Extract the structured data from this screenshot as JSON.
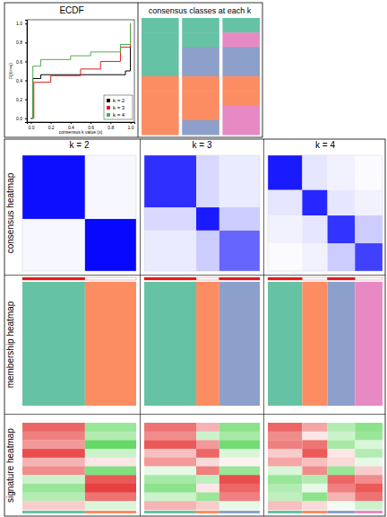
{
  "chart_data": [
    {
      "type": "line",
      "title": "ECDF",
      "x_label": "consensus k value (x)",
      "y_label": "F(X<=x)",
      "xlim": [
        -0.04,
        1.04
      ],
      "ylim": [
        -0.04,
        1.04
      ],
      "xticks": [
        {
          "value": 0,
          "label": "0.0"
        },
        {
          "value": 0.2,
          "label": "0.2"
        },
        {
          "value": 0.4,
          "label": "0.4"
        },
        {
          "value": 0.6,
          "label": "0.6"
        },
        {
          "value": 0.8,
          "label": "0.8"
        },
        {
          "value": 1,
          "label": "1.0"
        }
      ],
      "yticks": [
        {
          "value": 0,
          "label": "0.0"
        },
        {
          "value": 0.2,
          "label": "0.2"
        },
        {
          "value": 0.4,
          "label": "0.4"
        },
        {
          "value": 0.6,
          "label": "0.6"
        },
        {
          "value": 0.8,
          "label": "0.8"
        },
        {
          "value": 1,
          "label": "1.0"
        }
      ],
      "legend": "bottomright",
      "line_style": "step",
      "series": [
        {
          "name": "k = 2",
          "color": "#000000",
          "x": [
            0,
            0.02,
            0.1,
            0.95,
            1
          ],
          "values": [
            0,
            0.42,
            0.46,
            0.5,
            1
          ]
        },
        {
          "name": "k = 3",
          "color": "#E41A1C",
          "x": [
            0,
            0.03,
            0.2,
            0.5,
            0.7,
            0.9,
            1
          ],
          "values": [
            0,
            0.38,
            0.45,
            0.52,
            0.6,
            0.75,
            1
          ]
        },
        {
          "name": "k = 4",
          "color": "#4DAF4A",
          "x": [
            0,
            0.02,
            0.1,
            0.4,
            0.6,
            0.9,
            1
          ],
          "values": [
            0,
            0.55,
            0.62,
            0.66,
            0.7,
            0.78,
            1
          ]
        }
      ]
    },
    {
      "type": "heatmap",
      "title": "consensus classes at each k",
      "class_colors": [
        "#66C2A5",
        "#FC8D62",
        "#8DA0CB",
        "#E78AC3"
      ],
      "values": [
        [
          1,
          1,
          1
        ],
        [
          1,
          1,
          4
        ],
        [
          1,
          3,
          3
        ],
        [
          1,
          3,
          3
        ],
        [
          2,
          2,
          2
        ],
        [
          2,
          2,
          2
        ],
        [
          2,
          2,
          4
        ],
        [
          2,
          3,
          4
        ]
      ]
    },
    {
      "type": "panel_grid",
      "columns": [
        "k = 2",
        "k = 3",
        "k = 4"
      ],
      "rows": [
        "consensus heatmap",
        "membership heatmap",
        "signature heatmap"
      ],
      "class_colors": [
        "#66C2A5",
        "#FC8D62",
        "#8DA0CB",
        "#E78AC3"
      ],
      "consensus_colors": [
        "#FFFFFF",
        "#0000FF"
      ],
      "consensus_range": [
        0,
        1
      ],
      "signature_colors": [
        "#00C000",
        "#FFFFFF",
        "#E00000"
      ],
      "signature_range": [
        -2,
        0,
        2
      ],
      "panels": [
        {
          "sizes": [
            55,
            45
          ],
          "consensus": [
            [
              0.95,
              0.03
            ],
            [
              0.03,
              0.97
            ]
          ],
          "signature": [
            [
              1.2,
              -0.8
            ],
            [
              1.0,
              -0.6
            ],
            [
              0.8,
              -1.2
            ],
            [
              1.4,
              -0.4
            ],
            [
              0.6,
              0.2
            ],
            [
              0.9,
              -1.0
            ],
            [
              -0.4,
              1.3
            ],
            [
              -0.8,
              1.5
            ],
            [
              -0.6,
              1.1
            ],
            [
              0.4,
              -0.3
            ]
          ]
        },
        {
          "sizes": [
            45,
            20,
            35
          ],
          "consensus": [
            [
              0.82,
              0.15,
              0.08
            ],
            [
              0.15,
              0.9,
              0.2
            ],
            [
              0.08,
              0.2,
              0.6
            ]
          ],
          "signature": [
            [
              1.1,
              0.6,
              -0.9
            ],
            [
              0.9,
              -0.4,
              -0.7
            ],
            [
              1.3,
              0.8,
              -1.1
            ],
            [
              0.5,
              1.2,
              -0.3
            ],
            [
              0.8,
              0.3,
              0.1
            ],
            [
              -0.2,
              1.0,
              -0.8
            ],
            [
              -0.7,
              -0.5,
              1.4
            ],
            [
              -0.9,
              0.2,
              1.2
            ],
            [
              -0.4,
              -0.8,
              1.0
            ],
            [
              0.6,
              0.4,
              -0.2
            ]
          ]
        },
        {
          "sizes": [
            30,
            22,
            24,
            24
          ],
          "consensus": [
            [
              0.9,
              0.1,
              0.05,
              0.02
            ],
            [
              0.1,
              0.85,
              0.1,
              0.05
            ],
            [
              0.05,
              0.1,
              0.8,
              0.2
            ],
            [
              0.02,
              0.05,
              0.2,
              0.75
            ]
          ],
          "signature": [
            [
              1.2,
              0.7,
              -0.6,
              -0.9
            ],
            [
              0.9,
              0.2,
              -0.4,
              -0.8
            ],
            [
              1.0,
              1.1,
              -0.7,
              -0.3
            ],
            [
              0.4,
              1.3,
              0.2,
              -0.6
            ],
            [
              0.7,
              0.5,
              0.3,
              -0.2
            ],
            [
              -0.3,
              0.9,
              -0.8,
              0.4
            ],
            [
              -0.8,
              -0.6,
              1.2,
              0.9
            ],
            [
              -0.6,
              -0.2,
              1.0,
              1.3
            ],
            [
              -0.5,
              -0.9,
              0.6,
              1.1
            ],
            [
              0.5,
              0.3,
              -0.1,
              -0.4
            ]
          ]
        }
      ]
    }
  ]
}
